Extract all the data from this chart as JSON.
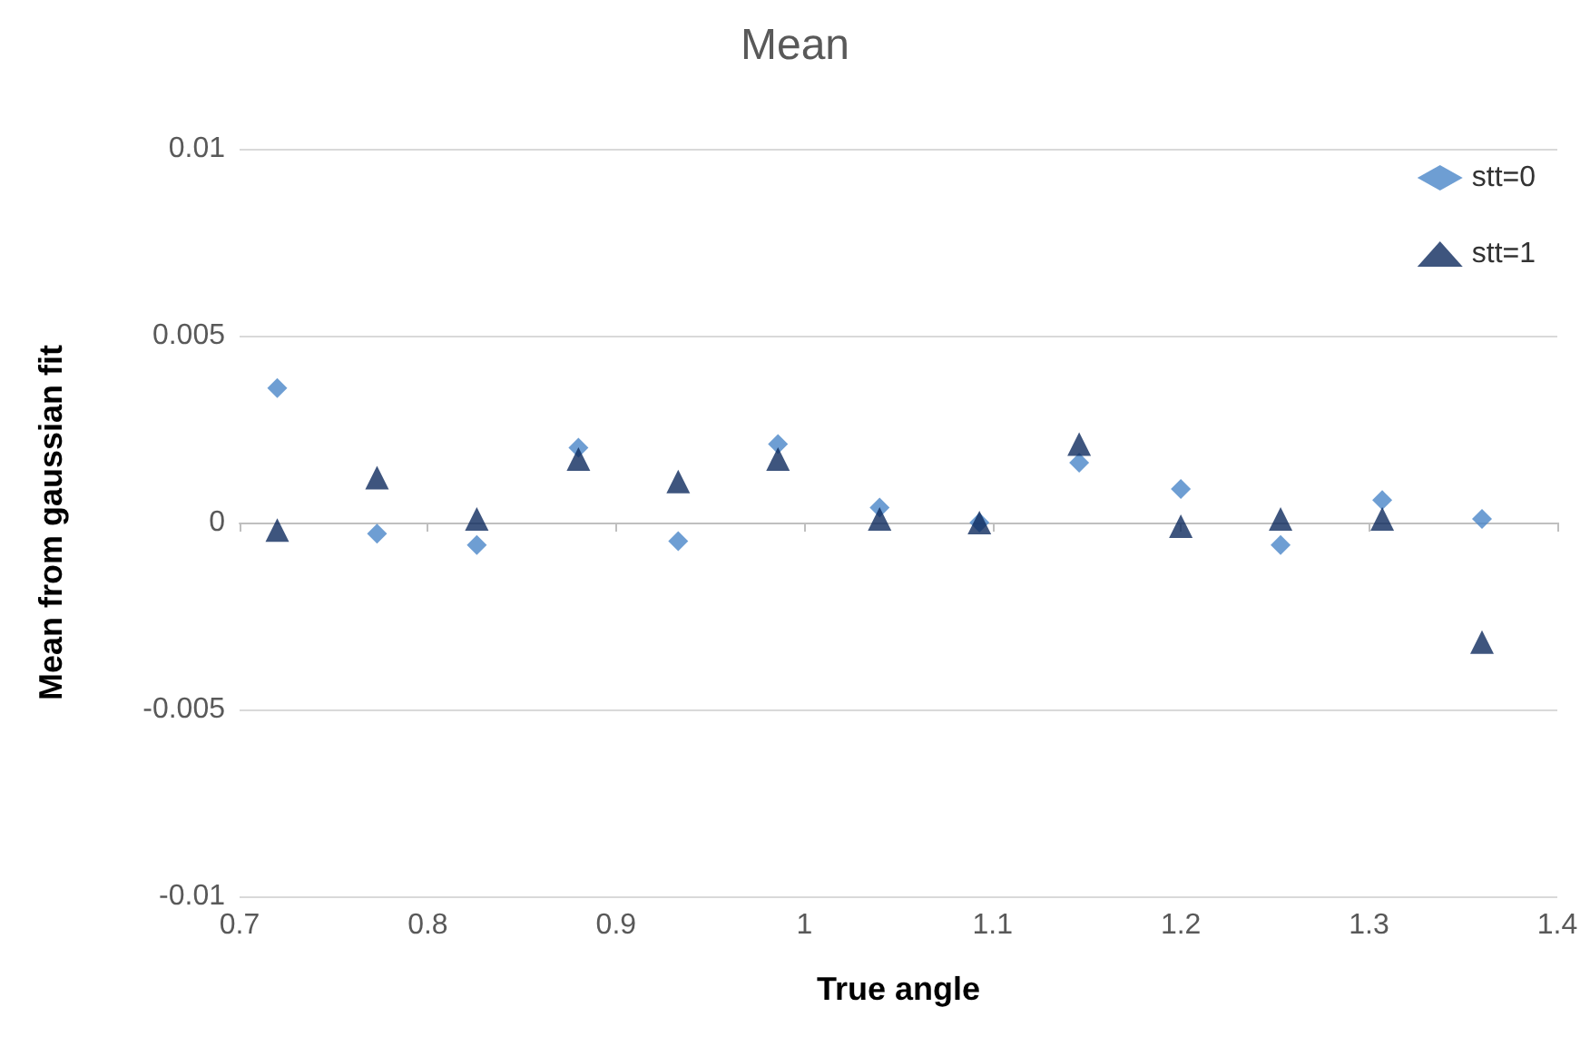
{
  "chart_data": {
    "type": "scatter",
    "title": "Mean",
    "xlabel": "True angle",
    "ylabel": "Mean from gaussian fit",
    "x": [
      0.72,
      0.773,
      0.826,
      0.88,
      0.933,
      0.986,
      1.04,
      1.093,
      1.146,
      1.2,
      1.253,
      1.307,
      1.36
    ],
    "series": [
      {
        "name": "stt=0",
        "color": "#4a86c8",
        "marker": "diamond",
        "values": [
          0.0036,
          -0.0003,
          -0.0006,
          0.002,
          -0.0005,
          0.0021,
          0.0004,
          0.0,
          0.0016,
          0.0009,
          -0.0006,
          0.0006,
          0.0001
        ]
      },
      {
        "name": "stt=1",
        "color": "#0e2a5e",
        "marker": "triangle",
        "values": [
          -0.0002,
          0.0012,
          0.0001,
          0.0017,
          0.0011,
          0.0017,
          0.0001,
          0.0,
          0.0021,
          -0.0001,
          0.0001,
          0.0001,
          -0.0032
        ]
      }
    ],
    "xlim": [
      0.7,
      1.4
    ],
    "xticks": [
      0.7,
      0.8,
      0.9,
      1,
      1.1,
      1.2,
      1.3,
      1.4
    ],
    "ylim": [
      -0.01,
      0.01
    ],
    "yticks": [
      -0.01,
      -0.005,
      0,
      0.005,
      0.01
    ],
    "grid": "y",
    "legend": "top right"
  }
}
